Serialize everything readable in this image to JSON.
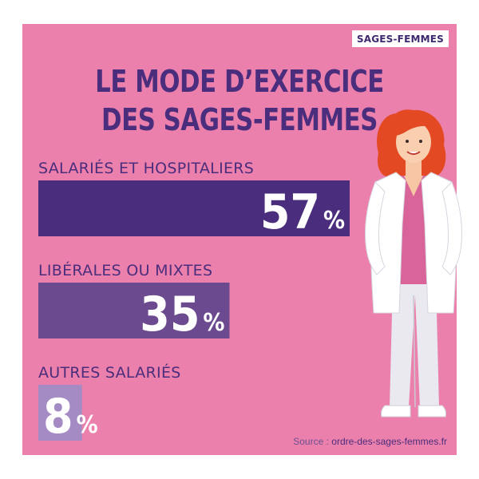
{
  "badge": "SAGES-FEMMES",
  "title_lines": [
    "LE MODE D’EXERCICE",
    "DES SAGES-FEMMES"
  ],
  "source_prefix": "Source :",
  "source_site": "ordre-des-sages-femmes.fr",
  "colors": {
    "background": "#ec80ac",
    "title": "#4a2d7c",
    "bar_1": "#4a2d7c",
    "bar_2": "#6b4a8f",
    "bar_3": "#a48bc4"
  },
  "chart_data": {
    "type": "bar",
    "orientation": "horizontal",
    "categories": [
      "SALARIÉS ET HOSPITALIERS",
      "LIBÉRALES OU MIXTES",
      "AUTRES SALARIÉS"
    ],
    "values": [
      57,
      35,
      8
    ],
    "value_labels": [
      "57",
      "35",
      "8"
    ],
    "unit": "%",
    "xlim": [
      0,
      57
    ],
    "grid": false,
    "legend": "none"
  }
}
